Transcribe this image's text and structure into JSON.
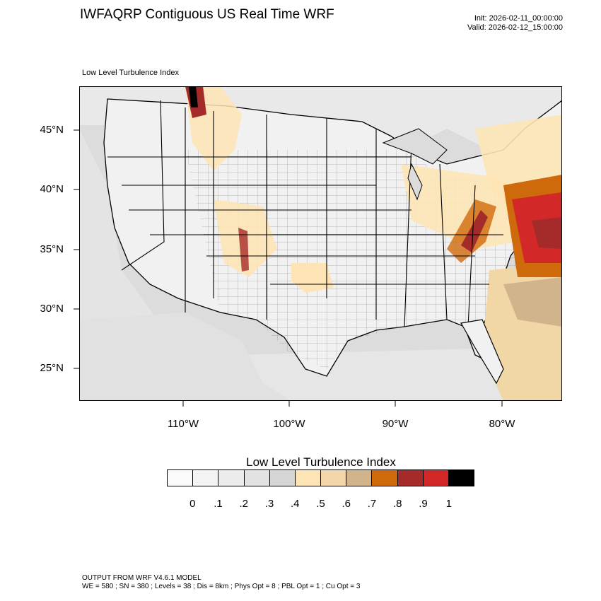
{
  "header": {
    "title": "IWFAQRP Contiguous US Real Time WRF",
    "init": "Init: 2026-02-11_00:00:00",
    "valid": "Valid: 2026-02-12_15:00:00"
  },
  "map": {
    "subtitle": "Low Level Turbulence Index",
    "lat_labels": [
      "45°N",
      "40°N",
      "35°N",
      "30°N",
      "25°N"
    ],
    "lon_labels": [
      "110°W",
      "100°W",
      "90°W",
      "80°W"
    ],
    "colors": {
      "ocean": "#d9d9d9",
      "land_low": "#f3f3f3",
      "land_mid": "#e6e6e6",
      "moderate": "#fde4b5",
      "elevated": "#f1d6a6",
      "tan": "#d2b48c",
      "orange": "#cf6a0c",
      "dark_red": "#a52a2a",
      "red": "#d22828",
      "black": "#000000"
    }
  },
  "colorbar": {
    "title": "Low Level Turbulence Index",
    "colors": [
      "#fafafa",
      "#f4f4f4",
      "#ececec",
      "#e2e2e2",
      "#d6d6d6",
      "#fde4b5",
      "#f3d7ab",
      "#d2b48c",
      "#cf6a0c",
      "#a52a2a",
      "#d22828",
      "#000000"
    ],
    "labels": [
      "0",
      ".1",
      ".2",
      ".3",
      ".4",
      ".5",
      ".6",
      ".7",
      ".8",
      ".9",
      "1"
    ]
  },
  "footer": {
    "line1": "OUTPUT FROM WRF V4.6.1 MODEL",
    "line2": "WE = 580 ; SN = 380 ; Levels = 38 ; Dis = 8km ; Phys Opt = 8 ; PBL Opt = 1 ; Cu Opt = 3"
  }
}
